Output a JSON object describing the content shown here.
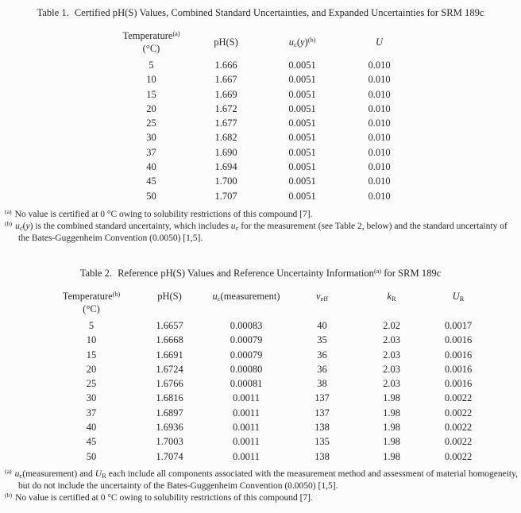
{
  "table1": {
    "title": {
      "label": "Table 1.",
      "runs": [
        {
          "t": "Certified pH(S) Values, Combined Standard Uncertainties, and Expanded Uncertainties for SRM 189c"
        }
      ]
    },
    "headers": [
      {
        "id": "temperature",
        "runs": [
          {
            "t": "Temperature"
          },
          {
            "t": "(a)",
            "s": "sup"
          },
          {
            "s": "br"
          },
          {
            "t": "(°C)"
          }
        ]
      },
      {
        "id": "ph-s",
        "runs": [
          {
            "t": "pH(S)"
          }
        ]
      },
      {
        "id": "uc-y",
        "runs": [
          {
            "t": "u",
            "i": true
          },
          {
            "t": "c",
            "s": "sub"
          },
          {
            "t": "("
          },
          {
            "t": "y",
            "i": true
          },
          {
            "t": ")"
          },
          {
            "t": "(b)",
            "s": "sup"
          }
        ]
      },
      {
        "id": "expanded-u",
        "runs": [
          {
            "t": "U",
            "i": true
          }
        ]
      }
    ],
    "rows": [
      [
        "5",
        "1.666",
        "0.0051",
        "0.010"
      ],
      [
        "10",
        "1.667",
        "0.0051",
        "0.010"
      ],
      [
        "15",
        "1.669",
        "0.0051",
        "0.010"
      ],
      [
        "20",
        "1.672",
        "0.0051",
        "0.010"
      ],
      [
        "25",
        "1.677",
        "0.0051",
        "0.010"
      ],
      [
        "30",
        "1.682",
        "0.0051",
        "0.010"
      ],
      [
        "37",
        "1.690",
        "0.0051",
        "0.010"
      ],
      [
        "40",
        "1.694",
        "0.0051",
        "0.010"
      ],
      [
        "45",
        "1.700",
        "0.0051",
        "0.010"
      ],
      [
        "50",
        "1.707",
        "0.0051",
        "0.010"
      ]
    ],
    "footnotes": [
      {
        "marker": "(a)",
        "runs": [
          {
            "t": "No value is certified at 0 °C owing to solubility restrictions of this compound [7]."
          }
        ]
      },
      {
        "marker": "(b)",
        "runs": [
          {
            "t": "u",
            "i": true
          },
          {
            "t": "c",
            "s": "sub"
          },
          {
            "t": "("
          },
          {
            "t": "y",
            "i": true
          },
          {
            "t": ") is the combined standard uncertainty, which includes "
          },
          {
            "t": "u",
            "i": true
          },
          {
            "t": "c",
            "s": "sub"
          },
          {
            "t": " for the measurement (see Table 2, below) and the standard uncertainty of the Bates-Guggenheim Convention (0.0050) [1,5]."
          }
        ]
      }
    ]
  },
  "table2": {
    "title": {
      "label": "Table 2.",
      "runs": [
        {
          "t": "Reference pH(S) Values and Reference Uncertainty Information"
        },
        {
          "t": "(a)",
          "s": "sup"
        },
        {
          "t": " for SRM 189c"
        }
      ]
    },
    "headers": [
      {
        "id": "temperature",
        "runs": [
          {
            "t": "Temperature"
          },
          {
            "t": "(b)",
            "s": "sup"
          },
          {
            "s": "br"
          },
          {
            "t": "(°C)"
          }
        ]
      },
      {
        "id": "ph-s",
        "runs": [
          {
            "t": "pH(S)"
          }
        ]
      },
      {
        "id": "uc-measurement",
        "runs": [
          {
            "t": "u",
            "i": true
          },
          {
            "t": "c",
            "s": "sub"
          },
          {
            "t": "(measurement)"
          }
        ]
      },
      {
        "id": "v-eff",
        "runs": [
          {
            "t": "v",
            "i": true
          },
          {
            "t": "eff",
            "s": "sub"
          }
        ]
      },
      {
        "id": "k-r",
        "runs": [
          {
            "t": "k",
            "i": true
          },
          {
            "t": "R",
            "s": "sub"
          }
        ]
      },
      {
        "id": "u-r",
        "runs": [
          {
            "t": "U",
            "i": true
          },
          {
            "t": "R",
            "s": "sub"
          }
        ]
      }
    ],
    "rows": [
      [
        "5",
        "1.6657",
        "0.00083",
        "40",
        "2.02",
        "0.0017"
      ],
      [
        "10",
        "1.6668",
        "0.00079",
        "35",
        "2.03",
        "0.0016"
      ],
      [
        "15",
        "1.6691",
        "0.00079",
        "36",
        "2.03",
        "0.0016"
      ],
      [
        "20",
        "1.6724",
        "0.00080",
        "36",
        "2.03",
        "0.0016"
      ],
      [
        "25",
        "1.6766",
        "0.00081",
        "38",
        "2.03",
        "0.0016"
      ],
      [
        "30",
        "1.6816",
        "0.0011",
        "137",
        "1.98",
        "0.0022"
      ],
      [
        "37",
        "1.6897",
        "0.0011",
        "137",
        "1.98",
        "0.0022"
      ],
      [
        "40",
        "1.6936",
        "0.0011",
        "138",
        "1.98",
        "0.0022"
      ],
      [
        "45",
        "1.7003",
        "0.0011",
        "135",
        "1.98",
        "0.0022"
      ],
      [
        "50",
        "1.7074",
        "0.0011",
        "138",
        "1.98",
        "0.0022"
      ]
    ],
    "footnotes": [
      {
        "marker": "(a)",
        "justify": true,
        "runs": [
          {
            "t": "u",
            "i": true
          },
          {
            "t": "c",
            "s": "sub"
          },
          {
            "t": "(measurement) and "
          },
          {
            "t": "U",
            "i": true
          },
          {
            "t": "R",
            "s": "sub"
          },
          {
            "t": " each include all components associated with the measurement method and assessment of material homogeneity, but do not include the uncertainty of the Bates-Guggenheim Convention (0.0050) [1,5]."
          }
        ]
      },
      {
        "marker": "(b)",
        "runs": [
          {
            "t": "No value is certified at 0 °C owing to solubility restrictions of this compound [7]."
          }
        ]
      }
    ]
  }
}
